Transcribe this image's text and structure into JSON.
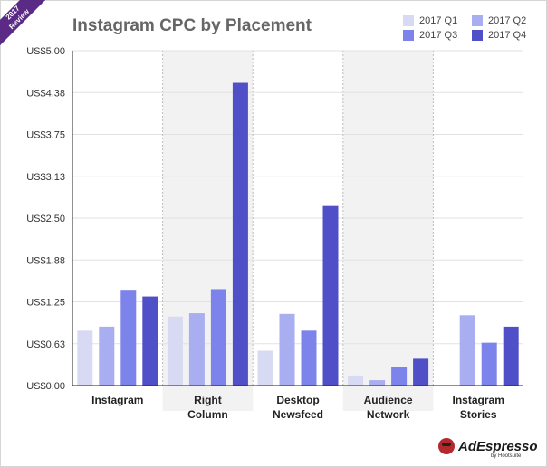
{
  "ribbon": {
    "year": "2017",
    "word": "Review"
  },
  "colors": {
    "q1": "#d8daf3",
    "q2": "#a9aef0",
    "q3": "#7c83ea",
    "q4": "#4f4fc7",
    "band": "#f2f2f2",
    "grid": "#e2e2e2"
  },
  "chart_data": {
    "type": "bar",
    "title": "Instagram CPC by Placement",
    "categories": [
      "Instagram",
      "Right\nColumn",
      "Desktop\nNewsfeed",
      "Audience\nNetwork",
      "Instagram\nStories"
    ],
    "series": [
      {
        "name": "2017 Q1",
        "values": [
          0.82,
          1.03,
          0.52,
          0.15,
          null
        ]
      },
      {
        "name": "2017 Q2",
        "values": [
          0.88,
          1.08,
          1.07,
          0.08,
          1.05
        ]
      },
      {
        "name": "2017 Q3",
        "values": [
          1.43,
          1.44,
          0.82,
          0.28,
          0.64
        ]
      },
      {
        "name": "2017 Q4",
        "values": [
          1.33,
          4.52,
          2.68,
          0.4,
          0.88
        ]
      }
    ],
    "yticks": [
      "US$0.00",
      "US$0.63",
      "US$1.25",
      "US$1.88",
      "US$2.50",
      "US$3.13",
      "US$3.75",
      "US$4.38",
      "US$5.00"
    ],
    "ylim": [
      0,
      5
    ],
    "legend": "top-right",
    "grid": true
  },
  "logo": {
    "brand": "AdEspresso",
    "byline": "by Hootsuite"
  }
}
